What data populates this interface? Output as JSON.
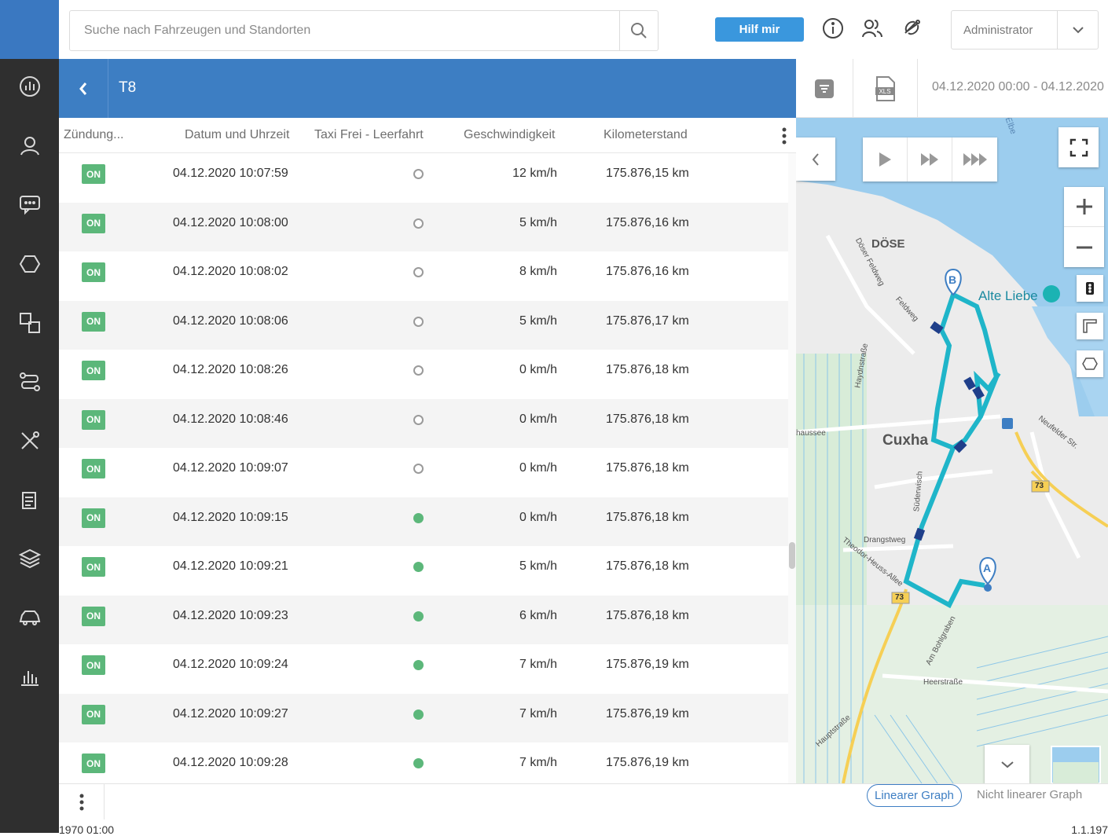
{
  "search": {
    "placeholder": "Suche nach Fahrzeugen und Standorten"
  },
  "header": {
    "help_label": "Hilf mir",
    "user_label": "Administrator"
  },
  "panel": {
    "title": "T8",
    "date_range": "04.12.2020 00:00 - 04.12.2020"
  },
  "table": {
    "columns": [
      "Zündung...",
      "Datum und Uhrzeit",
      "Taxi Frei - Leerfahrt",
      "Geschwindigkeit",
      "Kilometerstand"
    ],
    "rows": [
      {
        "ignition": "ON",
        "datetime": "04.12.2020 10:07:59",
        "taxi_free": false,
        "speed": "12 km/h",
        "odometer": "175.876,15 km"
      },
      {
        "ignition": "ON",
        "datetime": "04.12.2020 10:08:00",
        "taxi_free": false,
        "speed": "5 km/h",
        "odometer": "175.876,16 km"
      },
      {
        "ignition": "ON",
        "datetime": "04.12.2020 10:08:02",
        "taxi_free": false,
        "speed": "8 km/h",
        "odometer": "175.876,16 km"
      },
      {
        "ignition": "ON",
        "datetime": "04.12.2020 10:08:06",
        "taxi_free": false,
        "speed": "5 km/h",
        "odometer": "175.876,17 km"
      },
      {
        "ignition": "ON",
        "datetime": "04.12.2020 10:08:26",
        "taxi_free": false,
        "speed": "0 km/h",
        "odometer": "175.876,18 km"
      },
      {
        "ignition": "ON",
        "datetime": "04.12.2020 10:08:46",
        "taxi_free": false,
        "speed": "0 km/h",
        "odometer": "175.876,18 km"
      },
      {
        "ignition": "ON",
        "datetime": "04.12.2020 10:09:07",
        "taxi_free": false,
        "speed": "0 km/h",
        "odometer": "175.876,18 km"
      },
      {
        "ignition": "ON",
        "datetime": "04.12.2020 10:09:15",
        "taxi_free": true,
        "speed": "0 km/h",
        "odometer": "175.876,18 km"
      },
      {
        "ignition": "ON",
        "datetime": "04.12.2020 10:09:21",
        "taxi_free": true,
        "speed": "5 km/h",
        "odometer": "175.876,18 km"
      },
      {
        "ignition": "ON",
        "datetime": "04.12.2020 10:09:23",
        "taxi_free": true,
        "speed": "6 km/h",
        "odometer": "175.876,18 km"
      },
      {
        "ignition": "ON",
        "datetime": "04.12.2020 10:09:24",
        "taxi_free": true,
        "speed": "7 km/h",
        "odometer": "175.876,19 km"
      },
      {
        "ignition": "ON",
        "datetime": "04.12.2020 10:09:27",
        "taxi_free": true,
        "speed": "7 km/h",
        "odometer": "175.876,19 km"
      },
      {
        "ignition": "ON",
        "datetime": "04.12.2020 10:09:28",
        "taxi_free": true,
        "speed": "7 km/h",
        "odometer": "175.876,19 km"
      }
    ]
  },
  "map": {
    "labels": {
      "dose": "DÖSE",
      "alte_liebe": "Alte Liebe",
      "cuxhaven": "Cuxha",
      "doser_feldweg": "Döser Feldweg",
      "feldweg": "Feldweg",
      "haydnstrasse": "Haydnstraße",
      "chaussee": "haussee",
      "suderwisch": "Süderwisch",
      "drangstweg": "Drangstweg",
      "theodor": "Theodor-Heuss-Allee",
      "am_bohlgraben": "Am Bohlgraben",
      "heerstrasse": "Heerstraße",
      "hauptstrasse": "Hauptstraße",
      "neufelder": "Neufelder Str.",
      "elbe": "Elbe",
      "route_73a": "73",
      "route_73b": "73",
      "marker_a": "A",
      "marker_b": "B"
    }
  },
  "graph": {
    "linear_label": "Linearer Graph",
    "nonlinear_label": "Nicht linearer Graph",
    "axis_start": "1970 01:00",
    "axis_end": "1.1.197"
  },
  "colors": {
    "brand_blue": "#3d7ec3",
    "help_blue": "#3a97dd",
    "badge_green": "#5cb77a",
    "route": "#1fb5c9"
  }
}
